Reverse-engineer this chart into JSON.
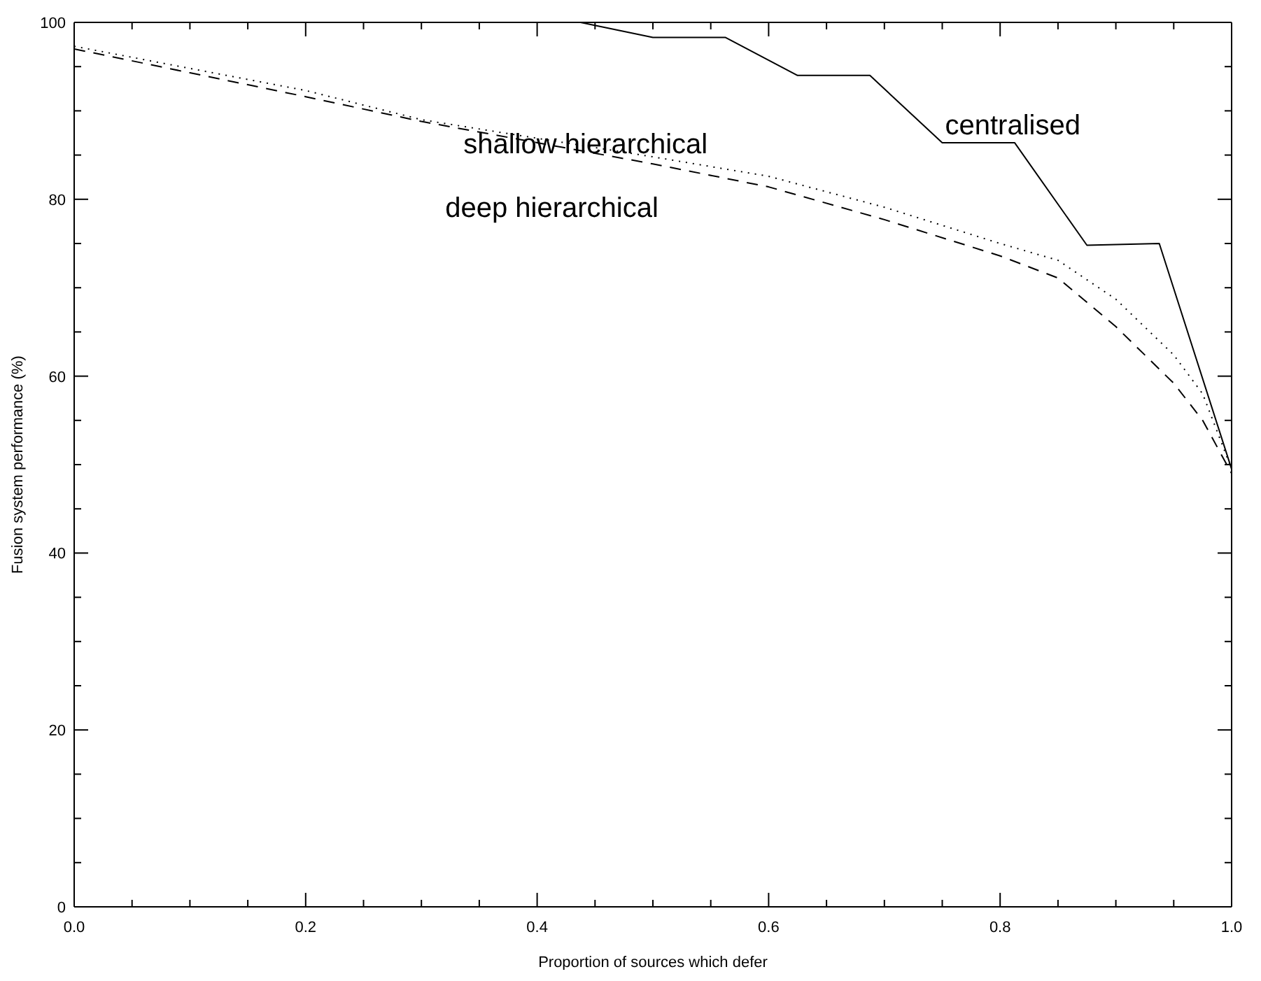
{
  "chart_data": {
    "type": "line",
    "xlabel": "Proportion of sources which defer",
    "ylabel": "Fusion system performance (%)",
    "xlim": [
      0,
      1
    ],
    "ylim": [
      0,
      100
    ],
    "xticks": [
      {
        "value": 0,
        "label": "0.0"
      },
      {
        "value": 0.05,
        "label": null
      },
      {
        "value": 0.1,
        "label": null
      },
      {
        "value": 0.15,
        "label": null
      },
      {
        "value": 0.2,
        "label": "0.2"
      },
      {
        "value": 0.25,
        "label": null
      },
      {
        "value": 0.3,
        "label": null
      },
      {
        "value": 0.35,
        "label": null
      },
      {
        "value": 0.4,
        "label": "0.4"
      },
      {
        "value": 0.45,
        "label": null
      },
      {
        "value": 0.5,
        "label": null
      },
      {
        "value": 0.55,
        "label": null
      },
      {
        "value": 0.6,
        "label": "0.6"
      },
      {
        "value": 0.65,
        "label": null
      },
      {
        "value": 0.7,
        "label": null
      },
      {
        "value": 0.75,
        "label": null
      },
      {
        "value": 0.8,
        "label": "0.8"
      },
      {
        "value": 0.85,
        "label": null
      },
      {
        "value": 0.9,
        "label": null
      },
      {
        "value": 0.95,
        "label": null
      },
      {
        "value": 1,
        "label": "1.0"
      }
    ],
    "yticks": [
      0,
      {
        "value": 5,
        "label": null
      },
      {
        "value": 10,
        "label": null
      },
      {
        "value": 15,
        "label": null
      },
      20,
      {
        "value": 25,
        "label": null
      },
      {
        "value": 30,
        "label": null
      },
      {
        "value": 35,
        "label": null
      },
      40,
      {
        "value": 45,
        "label": null
      },
      {
        "value": 50,
        "label": null
      },
      {
        "value": 55,
        "label": null
      },
      60,
      {
        "value": 65,
        "label": null
      },
      {
        "value": 70,
        "label": null
      },
      {
        "value": 75,
        "label": null
      },
      80,
      {
        "value": 85,
        "label": null
      },
      {
        "value": 90,
        "label": null
      },
      {
        "value": 95,
        "label": null
      },
      100
    ],
    "legend": false,
    "marker": "none",
    "series": [
      {
        "name": "centralised",
        "color": "#000000",
        "line_style": "solid",
        "x": [
          0,
          0.4375,
          0.5,
          0.5625,
          0.625,
          0.6875,
          0.75,
          0.8125,
          0.875,
          0.9375,
          1
        ],
        "values": [
          100,
          100,
          98.3,
          98.3,
          94,
          94,
          86.4,
          86.4,
          74.8,
          75,
          49.5
        ]
      },
      {
        "name": "shallow hierarchical",
        "color": "#000000",
        "line_style": "dotted",
        "x": [
          0,
          0.1,
          0.2,
          0.3,
          0.4,
          0.5,
          0.6,
          0.7,
          0.8,
          0.85,
          0.9,
          0.95,
          0.975,
          1
        ],
        "values": [
          97.3,
          94.8,
          92.3,
          89,
          86.9,
          84.8,
          82.6,
          79.1,
          75,
          73.1,
          68.7,
          62.4,
          58,
          49.5
        ]
      },
      {
        "name": "deep hierarchical",
        "color": "#000000",
        "line_style": "dashed",
        "x": [
          0,
          0.1,
          0.2,
          0.3,
          0.4,
          0.5,
          0.6,
          0.7,
          0.8,
          0.85,
          0.9,
          0.95,
          0.975,
          1
        ],
        "values": [
          97,
          94.3,
          91.6,
          88.8,
          86.4,
          84,
          81.4,
          77.7,
          73.6,
          71.1,
          65.6,
          59.2,
          55,
          49
        ]
      }
    ]
  }
}
